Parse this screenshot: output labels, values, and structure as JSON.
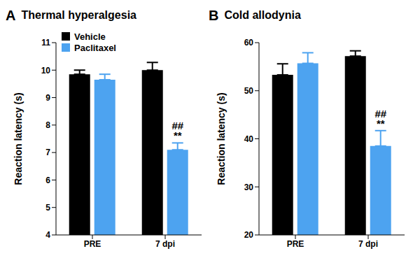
{
  "chart_data": [
    {
      "type": "bar",
      "panel_label": "A",
      "title": "Thermal hyperalgesia",
      "y_label": "Reaction latency (s)",
      "categories": [
        "PRE",
        "7 dpi"
      ],
      "series": [
        {
          "name": "Vehicle",
          "color": "#000000",
          "values": [
            9.85,
            10.0
          ],
          "errors": [
            0.15,
            0.28
          ]
        },
        {
          "name": "Paclitaxel",
          "color": "#4da3f0",
          "values": [
            9.65,
            7.1
          ],
          "errors": [
            0.2,
            0.25
          ]
        }
      ],
      "ylim": [
        4,
        11
      ],
      "yticks": [
        4,
        5,
        6,
        7,
        8,
        9,
        10,
        11
      ],
      "legend": "top left",
      "annotations": [
        {
          "category": "7 dpi",
          "series": "Paclitaxel",
          "text": "##"
        },
        {
          "category": "7 dpi",
          "series": "Paclitaxel",
          "text": "**"
        }
      ]
    },
    {
      "type": "bar",
      "panel_label": "B",
      "title": "Cold allodynia",
      "y_label": "Reaction latency (s)",
      "categories": [
        "PRE",
        "7 dpi"
      ],
      "series": [
        {
          "name": "Vehicle",
          "color": "#000000",
          "values": [
            53.3,
            57.2
          ],
          "errors": [
            2.3,
            1.1
          ]
        },
        {
          "name": "Paclitaxel",
          "color": "#4da3f0",
          "values": [
            55.7,
            38.5
          ],
          "errors": [
            2.2,
            3.2
          ]
        }
      ],
      "ylim": [
        20,
        60
      ],
      "yticks": [
        20,
        30,
        40,
        50,
        60
      ],
      "annotations": [
        {
          "category": "7 dpi",
          "series": "Paclitaxel",
          "text": "##"
        },
        {
          "category": "7 dpi",
          "series": "Paclitaxel",
          "text": "**"
        }
      ]
    }
  ]
}
